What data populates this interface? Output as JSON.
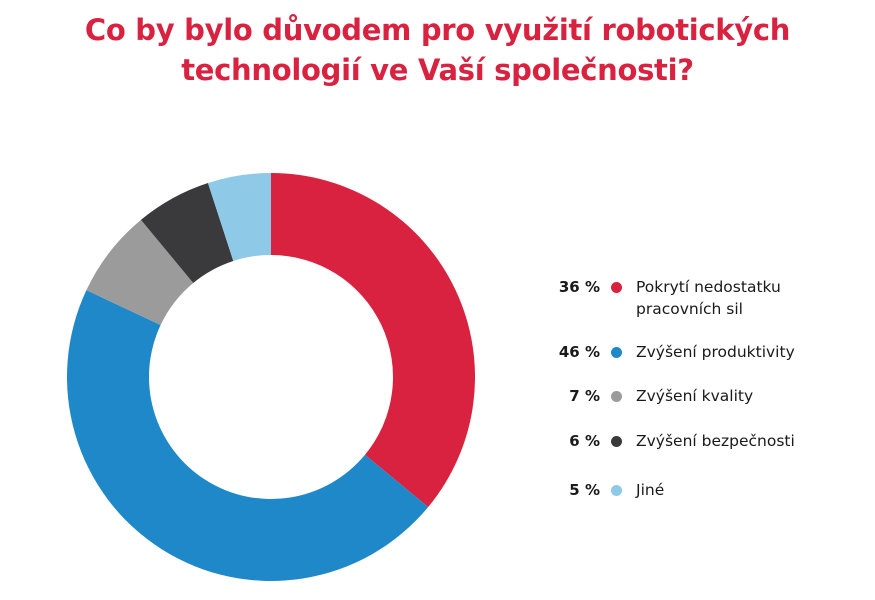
{
  "title": {
    "line1": "Co by bylo důvodem pro využití robotických",
    "line2": "technologií ve Vaší společnosti?"
  },
  "chart_data": {
    "type": "pie",
    "donut": true,
    "series": [
      {
        "label": "Pokrytí nedostatku pracovních sil",
        "label_lines": [
          "Pokrytí nedostatku",
          "pracovních sil"
        ],
        "value": 36,
        "value_label": "36 %",
        "color": "#d9223f"
      },
      {
        "label": "Zvýšení produktivity",
        "label_lines": [
          "Zvýšení produktivity"
        ],
        "value": 46,
        "value_label": "46 %",
        "color": "#1e88c9"
      },
      {
        "label": "Zvýšení kvality",
        "label_lines": [
          "Zvýšení kvality"
        ],
        "value": 7,
        "value_label": "7 %",
        "color": "#9b9b9b"
      },
      {
        "label": "Zvýšení bezpečnosti",
        "label_lines": [
          "Zvýšení bezpečnosti"
        ],
        "value": 6,
        "value_label": "6 %",
        "color": "#3a3a3c"
      },
      {
        "label": "Jiné",
        "label_lines": [
          "Jiné"
        ],
        "value": 5,
        "value_label": "5 %",
        "color": "#8ecae8"
      }
    ],
    "legend_position": "right",
    "start_angle": "12 o'clock",
    "direction": "clockwise"
  }
}
